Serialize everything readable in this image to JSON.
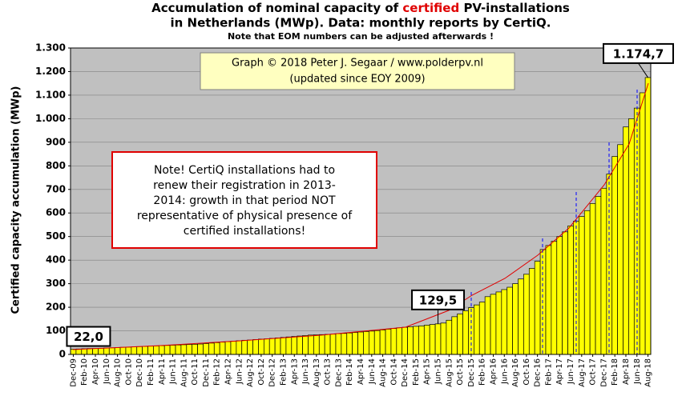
{
  "chart_data": {
    "type": "bar",
    "title": [
      "Accumulation  of nominal  capacity of ",
      "certified",
      " PV-installations"
    ],
    "subtitle": "in Netherlands (MWp). Data: monthly  reports by CertiQ.",
    "note": "Note that EOM numbers can be adjusted afterwards  !",
    "copyright": [
      "Graph © 2018 Peter J. Segaar / www.polderpv.nl",
      "(updated since EOY 2009)"
    ],
    "annotation": [
      "Note! CertiQ installations had to",
      "renew their registration in 2013-",
      "2014:  growth in that period NOT",
      "representative of physical presence of",
      "certified installations!"
    ],
    "y_label": "Certified  capacity accumulation  (MWp)",
    "color": "#ffff00",
    "categories": [
      "Dec-09",
      null,
      "Feb-10",
      null,
      "Apr-10",
      null,
      "Jun-10",
      null,
      "Aug-10",
      null,
      "Oct-10",
      null,
      "Dec-10",
      null,
      "Feb-11",
      null,
      "Apr-11",
      null,
      "Jun-11",
      null,
      "Aug-11",
      null,
      "Oct-11",
      null,
      "Dec-11",
      null,
      "Feb-12",
      null,
      "Apr-12",
      null,
      "Jun-12",
      null,
      "Aug-12",
      null,
      "Oct-12",
      null,
      "Dec-12",
      null,
      "Feb-13",
      null,
      "Apr-13",
      null,
      "Jun-13",
      null,
      "Aug-13",
      null,
      "Oct-13",
      null,
      "Dec-13",
      null,
      "Feb-14",
      null,
      "Apr-14",
      null,
      "Jun-14",
      null,
      "Aug-14",
      null,
      "Oct-14",
      null,
      "Dec-14",
      null,
      "Feb-15",
      null,
      "Apr-15",
      null,
      "Jun-15",
      null,
      "Aug-15",
      null,
      "Oct-15",
      null,
      "Dec-15",
      null,
      "Feb-16",
      null,
      "Apr-16",
      null,
      "Jun-16",
      null,
      "Aug-16",
      null,
      "Oct-16",
      null,
      "Dec-16",
      null,
      "Feb-17",
      null,
      "Apr-17",
      null,
      "Jun-17",
      null,
      "Aug-17",
      null,
      "Oct-17",
      null,
      "Dec-17",
      null,
      "Feb-18",
      null,
      "Apr-18",
      null,
      "Jun-18",
      null,
      "Aug-18"
    ],
    "values": [
      22.0,
      23,
      24,
      25,
      25,
      26,
      27,
      28,
      29,
      30,
      31,
      32,
      33,
      34,
      35,
      36,
      37,
      38,
      39,
      40,
      41,
      42,
      43,
      44,
      46,
      48,
      50,
      52,
      54,
      56,
      58,
      60,
      61,
      63,
      65,
      66,
      68,
      70,
      72,
      74,
      76,
      78,
      80,
      82,
      83,
      84,
      85,
      86,
      88,
      89,
      91,
      93,
      95,
      97,
      99,
      101,
      104,
      107,
      110,
      113,
      115,
      117,
      119,
      121,
      124,
      127,
      129.5,
      133,
      145,
      160,
      172,
      185,
      198,
      210,
      222,
      245,
      255,
      265,
      275,
      285,
      300,
      320,
      340,
      365,
      395,
      445,
      462,
      480,
      500,
      520,
      545,
      565,
      585,
      610,
      640,
      670,
      705,
      765,
      840,
      890,
      965,
      1000,
      1045,
      1110,
      1174.7
    ],
    "value_labels": {
      "0": "22,0",
      "66": "129,5",
      "104": "1.174,7"
    },
    "ylim": [
      0,
      1300
    ],
    "yticks": [
      0,
      100,
      200,
      300,
      400,
      500,
      600,
      700,
      800,
      900,
      {
        "value": 1000,
        "label": "1.000"
      },
      {
        "value": 1100,
        "label": "1.100"
      },
      {
        "value": 1200,
        "label": "1.200"
      },
      {
        "value": 1300,
        "label": "1.300"
      }
    ],
    "grid": true
  }
}
